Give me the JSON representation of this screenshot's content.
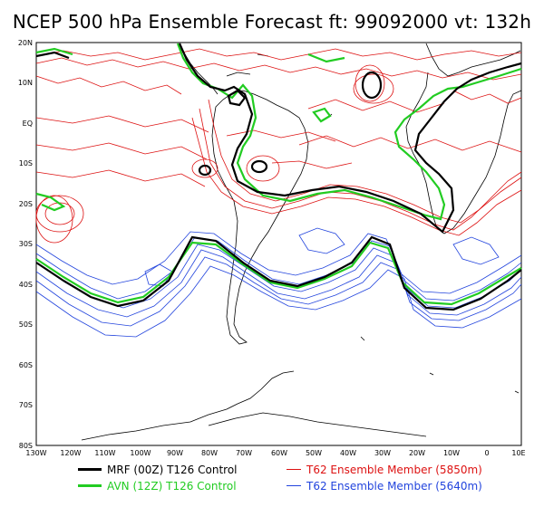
{
  "title": "NCEP 500 hPa Ensemble Forecast  ft: 99092000 vt: 132h",
  "map": {
    "lon_range": [
      -130,
      10
    ],
    "lat_range": [
      -80,
      20
    ],
    "lat_ticks": [
      "20N",
      "10N",
      "EQ",
      "10S",
      "20S",
      "30S",
      "40S",
      "50S",
      "60S",
      "70S",
      "80S"
    ],
    "lon_ticks": [
      "130W",
      "120W",
      "110W",
      "100W",
      "90W",
      "80W",
      "70W",
      "60W",
      "50W",
      "40W",
      "30W",
      "20W",
      "10W",
      "0",
      "10E"
    ]
  },
  "legend": [
    {
      "label": "MRF (00Z) T126 Control",
      "color": "#000000"
    },
    {
      "label": "AVN (12Z) T126 Control",
      "color": "#22cc22"
    },
    {
      "label": "T62 Ensemble Member (5850m)",
      "color": "#dd1111"
    },
    {
      "label": "T62 Ensemble Member (5640m)",
      "color": "#2244dd"
    }
  ],
  "colors": {
    "mrf": "#000000",
    "avn": "#22cc22",
    "red": "#dd1111",
    "blue": "#2244dd"
  }
}
